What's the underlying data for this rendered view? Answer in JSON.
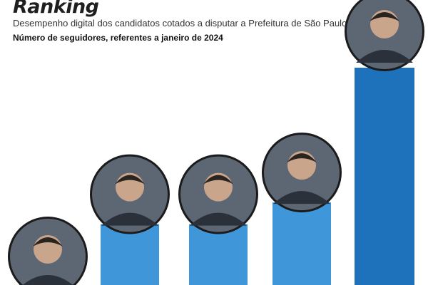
{
  "header": {
    "title": "Ranking",
    "subtitle": "Desempenho digital dos candidatos cotados a disputar a Prefeitura de São Paulo",
    "note": "Número de seguidores, referentes a janeiro de 2024"
  },
  "colors": {
    "bar": "#3f97d9",
    "bar_top": "#1e72bc",
    "photo_border": "#1b1b1b"
  },
  "icons": [
    "candidate-photo-icon"
  ],
  "chart_data": {
    "type": "bar",
    "title": "Ranking",
    "subtitle": "Desempenho digital dos candidatos cotados a disputar a Prefeitura de São Paulo",
    "xlabel": "",
    "ylabel": "",
    "categories": [
      "",
      "",
      "",
      "",
      ""
    ],
    "values": [
      5,
      28,
      28,
      38,
      100
    ],
    "value_unit": "relative height (% of tallest bar); no values printed",
    "ylim": [
      0,
      100
    ],
    "grid": false,
    "legend": "none"
  }
}
